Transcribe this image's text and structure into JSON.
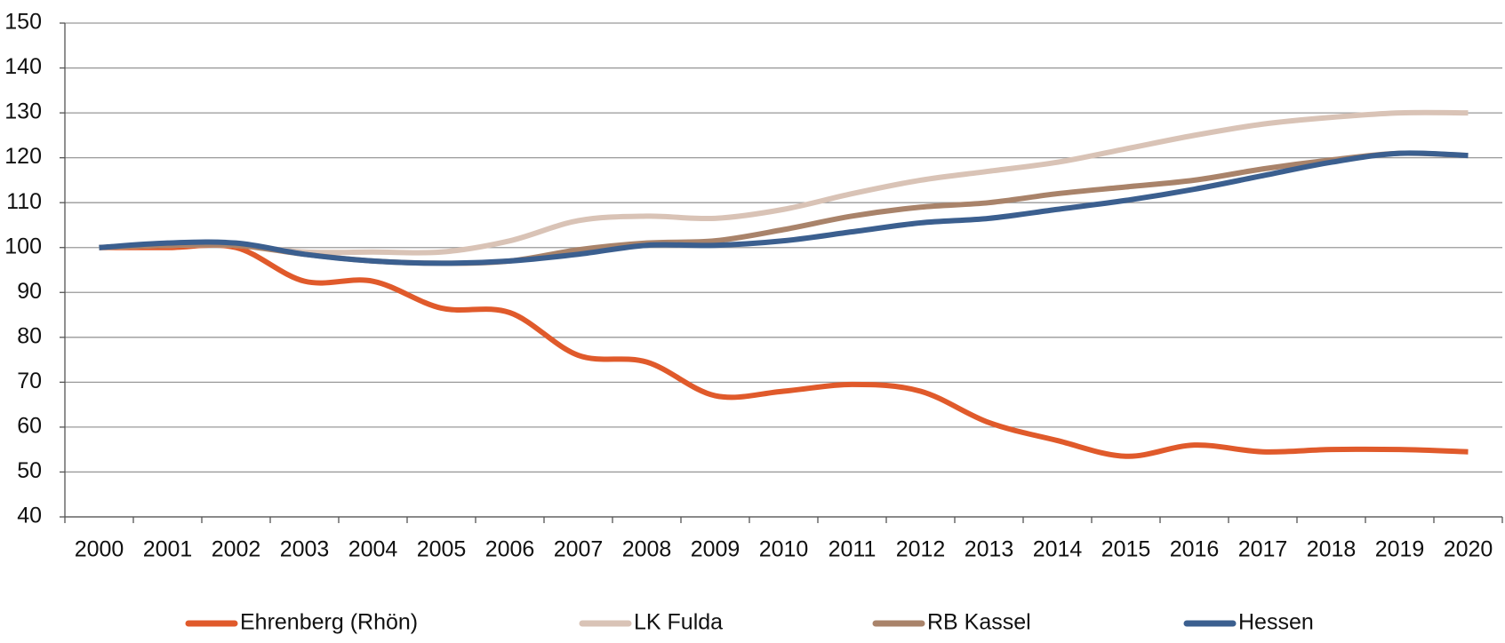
{
  "chart_data": {
    "type": "line",
    "categories": [
      "2000",
      "2001",
      "2002",
      "2003",
      "2004",
      "2005",
      "2006",
      "2007",
      "2008",
      "2009",
      "2010",
      "2011",
      "2012",
      "2013",
      "2014",
      "2015",
      "2016",
      "2017",
      "2018",
      "2019",
      "2020"
    ],
    "series": [
      {
        "name": "Ehrenberg (Rhön)",
        "color": "#e05a2b",
        "values": [
          100,
          100,
          100,
          92.5,
          92.5,
          86.5,
          85.5,
          76,
          74.5,
          67,
          68,
          69.5,
          68,
          61,
          57,
          53.5,
          56,
          54.5,
          55,
          55,
          54.5
        ]
      },
      {
        "name": "LK Fulda",
        "color": "#d9c3b6",
        "values": [
          100,
          100.5,
          100.5,
          99,
          99,
          99,
          101.5,
          106,
          107,
          106.5,
          108.5,
          112,
          115,
          117,
          119,
          122,
          125,
          127.5,
          129,
          130,
          130
        ]
      },
      {
        "name": "RB Kassel",
        "color": "#a9836a",
        "values": [
          100,
          100.5,
          100.5,
          98.5,
          97,
          96.5,
          97,
          99.5,
          101,
          101.5,
          104,
          107,
          109,
          110,
          112,
          113.5,
          115,
          117.5,
          119.5,
          121,
          120.5
        ]
      },
      {
        "name": "Hessen",
        "color": "#3b5f8f",
        "values": [
          100,
          101,
          101,
          98.5,
          97,
          96.5,
          97,
          98.5,
          100.5,
          100.5,
          101.5,
          103.5,
          105.5,
          106.5,
          108.5,
          110.5,
          113,
          116,
          119,
          121,
          120.5
        ]
      }
    ],
    "ylim": [
      40,
      150
    ],
    "yticks": [
      40,
      50,
      60,
      70,
      80,
      90,
      100,
      110,
      120,
      130,
      140,
      150
    ],
    "grid": true,
    "legend": "bottom"
  }
}
